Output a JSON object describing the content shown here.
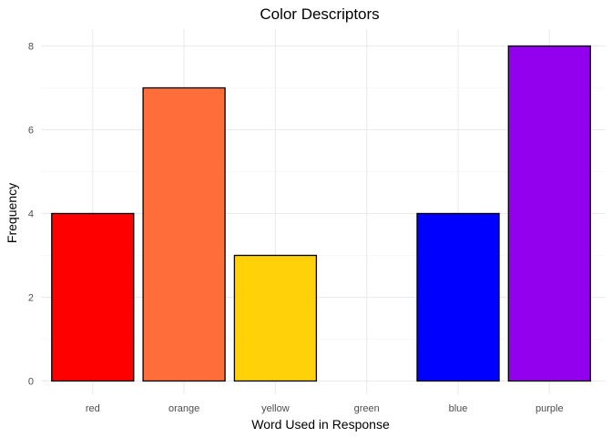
{
  "chart_data": {
    "type": "bar",
    "title": "Color Descriptors",
    "xlabel": "Word Used in Response",
    "ylabel": "Frequency",
    "categories": [
      "red",
      "orange",
      "yellow",
      "green",
      "blue",
      "purple"
    ],
    "values": [
      4,
      7,
      3,
      0,
      4,
      8
    ],
    "colors": [
      "#ff0000",
      "#ff6d3b",
      "#ffd109",
      "#00a000",
      "#0000ff",
      "#9300ee"
    ],
    "yticks": [
      "0",
      "2",
      "4",
      "6",
      "8"
    ],
    "ylim": [
      0,
      8
    ],
    "grid": true,
    "legend": "none"
  }
}
